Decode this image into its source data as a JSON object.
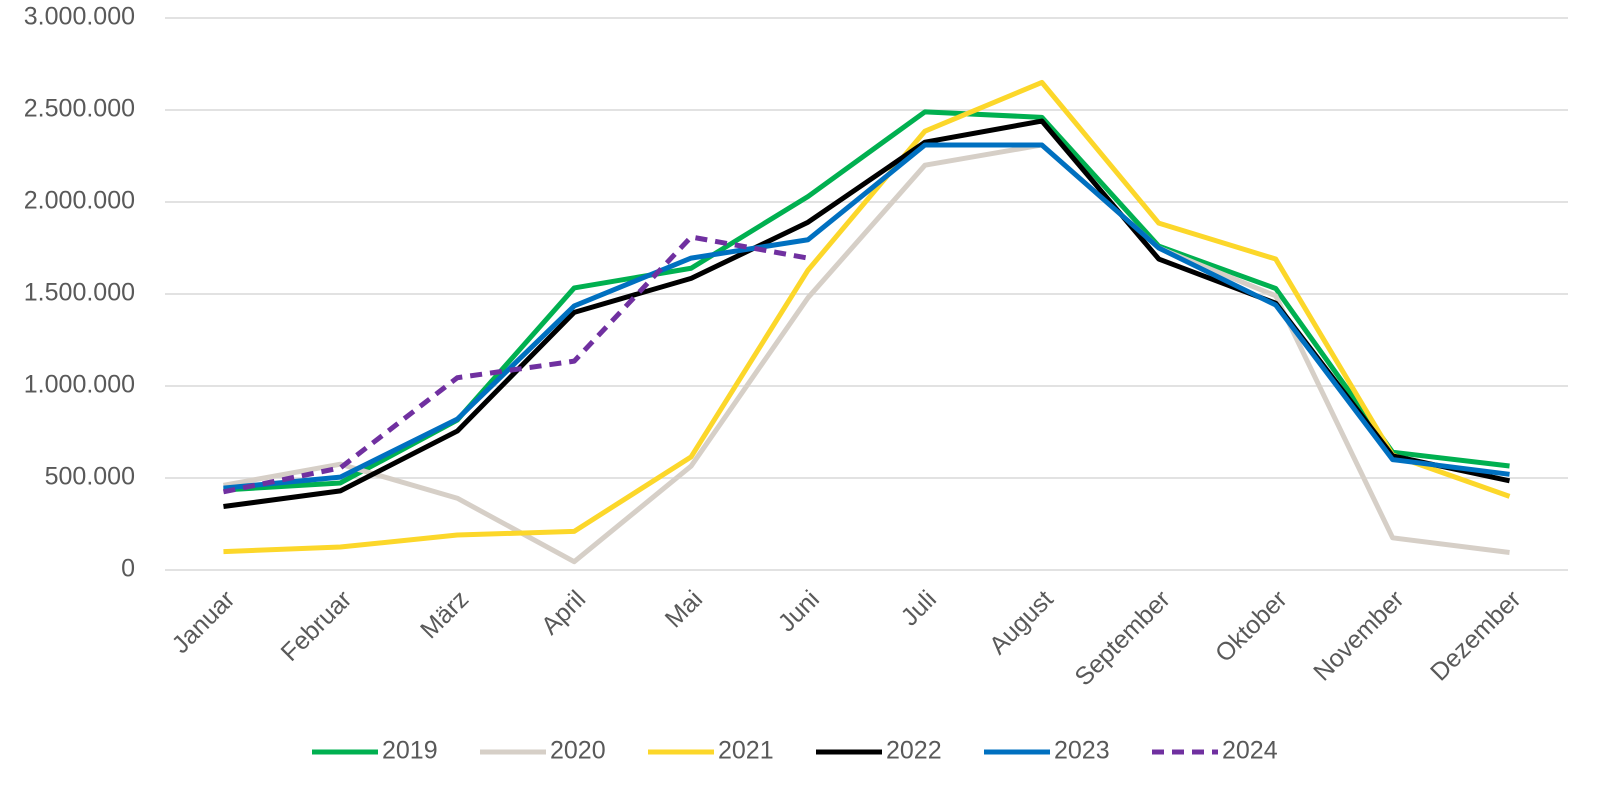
{
  "chart_data": {
    "type": "line",
    "categories": [
      "Januar",
      "Februar",
      "März",
      "April",
      "Mai",
      "Juni",
      "Juli",
      "August",
      "September",
      "Oktober",
      "November",
      "Dezember"
    ],
    "series": [
      {
        "name": "2019",
        "color": "#00b050",
        "values": [
          435000,
          473000,
          815000,
          1533000,
          1640000,
          2030000,
          2490000,
          2460000,
          1760000,
          1530000,
          640000,
          565000
        ]
      },
      {
        "name": "2020",
        "color": "#d6cfc7",
        "values": [
          460000,
          575000,
          390000,
          45000,
          565000,
          1480000,
          2200000,
          2310000,
          1750000,
          1490000,
          175000,
          95000
        ]
      },
      {
        "name": "2021",
        "color": "#fcd72a",
        "values": [
          100000,
          125000,
          190000,
          210000,
          615000,
          1630000,
          2385000,
          2650000,
          1885000,
          1690000,
          625000,
          400000
        ]
      },
      {
        "name": "2022",
        "color": "#000000",
        "values": [
          345000,
          430000,
          755000,
          1400000,
          1585000,
          1890000,
          2325000,
          2440000,
          1690000,
          1450000,
          620000,
          485000
        ]
      },
      {
        "name": "2023",
        "color": "#0070c0",
        "values": [
          445000,
          505000,
          820000,
          1435000,
          1695000,
          1795000,
          2310000,
          2310000,
          1750000,
          1440000,
          600000,
          520000
        ]
      },
      {
        "name": "2024",
        "color": "#7030a0",
        "dashed": true,
        "values": [
          425000,
          555000,
          1045000,
          1135000,
          1810000,
          1695000,
          null,
          null,
          null,
          null,
          null,
          null
        ]
      }
    ],
    "ylim": [
      0,
      3000000
    ],
    "yticks": [
      0,
      {
        "value": 500000,
        "label": "500.000"
      },
      {
        "value": 1000000,
        "label": "1.000.000"
      },
      {
        "value": 1500000,
        "label": "1.500.000"
      },
      {
        "value": 2000000,
        "label": "2.000.000"
      },
      {
        "value": 2500000,
        "label": "2.500.000"
      },
      {
        "value": 3000000,
        "label": "3.000.000"
      }
    ],
    "grid": true,
    "legend": "bottom"
  }
}
